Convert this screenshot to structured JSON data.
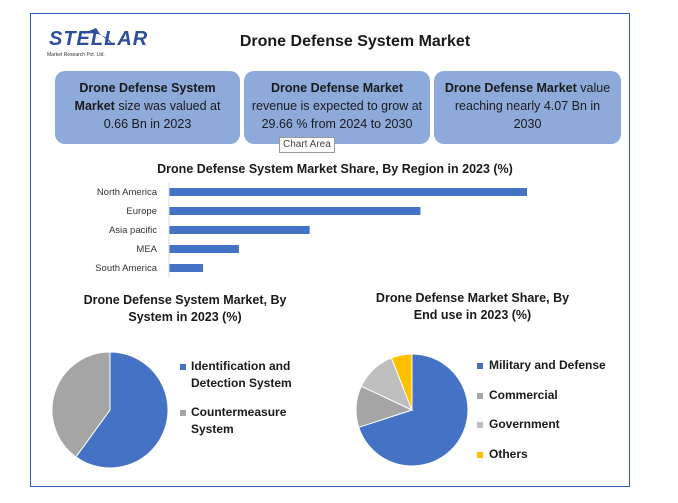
{
  "title": "Drone Defense System Market",
  "logo": {
    "name": "STELLAR",
    "tagline": "Market Research Pvt. Ltd."
  },
  "stats": [
    {
      "bold": "Drone Defense System Market",
      "text": " size was valued at 0.66 Bn in 2023"
    },
    {
      "bold": "Drone Defense Market",
      "text": " revenue is expected to grow at 29.66 % from 2024 to 2030"
    },
    {
      "bold": "Drone Defense Market",
      "text": " value reaching nearly 4.07 Bn in 2030"
    }
  ],
  "tooltip": "Chart Area",
  "colors": {
    "blue": "#4472c4",
    "gray": "#a5a5a5",
    "gray2": "#bfbfbf",
    "yellow": "#ffc000",
    "box": "#8eaadb"
  },
  "chart_data": [
    {
      "type": "bar",
      "orientation": "horizontal",
      "title": "Drone Defense System Market Share, By Region in 2023 (%)",
      "categories": [
        "North America",
        "Europe",
        "Asia pacific",
        "MEA",
        "South America"
      ],
      "values": [
        42,
        29.5,
        16.5,
        8.2,
        4
      ]
    },
    {
      "type": "pie",
      "title": "Drone Defense System Market, By System in 2023 (%)",
      "labels": [
        "Identification and Detection System",
        "Countermeasure System"
      ],
      "values": [
        60,
        40
      ],
      "legend": "right"
    },
    {
      "type": "pie",
      "title": "Drone Defense Market Share, By End use in 2023 (%)",
      "labels": [
        "Military and Defense",
        "Commercial",
        "Government",
        "Others"
      ],
      "values": [
        70,
        12,
        12,
        6
      ],
      "legend": "right"
    }
  ]
}
